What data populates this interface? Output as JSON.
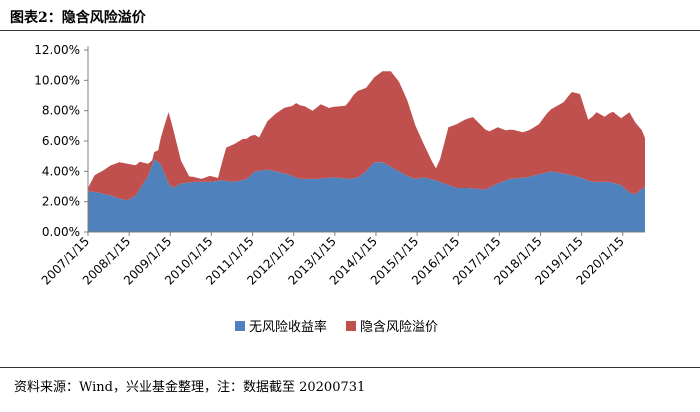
{
  "header": {
    "title": "图表2：隐含风险溢价"
  },
  "footer": {
    "source": "资料来源：Wind，兴业基金整理，注：数据截至 20200731"
  },
  "colors": {
    "risk_free": "#4F81BD",
    "risk_premium": "#C0504D",
    "axis": "#808080"
  },
  "chart_data": {
    "type": "area",
    "stacked": true,
    "title": "",
    "xlabel": "",
    "ylabel": "",
    "ylim": [
      0,
      12
    ],
    "yticks": [
      0,
      2,
      4,
      6,
      8,
      10,
      12
    ],
    "ytick_labels": [
      "0.00%",
      "2.00%",
      "4.00%",
      "6.00%",
      "8.00%",
      "10.00%",
      "12.00%"
    ],
    "xlim": [
      2007.04,
      2020.58
    ],
    "xticks": [
      2007.04,
      2008.04,
      2009.04,
      2010.04,
      2011.04,
      2012.04,
      2013.04,
      2014.04,
      2015.04,
      2016.04,
      2017.04,
      2018.04,
      2019.04,
      2020.04
    ],
    "xtick_labels": [
      "2007/1/15",
      "2008/1/15",
      "2009/1/15",
      "2010/1/15",
      "2011/1/15",
      "2012/1/15",
      "2013/1/15",
      "2014/1/15",
      "2015/1/15",
      "2016/1/15",
      "2017/1/15",
      "2018/1/15",
      "2019/1/15",
      "2020/1/15"
    ],
    "legend_position": "bottom",
    "series": [
      {
        "name": "无风险收益率",
        "x": [
          2007.04,
          2007.3,
          2007.6,
          2007.8,
          2008.0,
          2008.2,
          2008.5,
          2008.65,
          2008.8,
          2009.0,
          2009.1,
          2009.3,
          2009.6,
          2010.0,
          2010.3,
          2010.6,
          2010.9,
          2011.1,
          2011.4,
          2011.6,
          2011.9,
          2012.2,
          2012.6,
          2013.0,
          2013.4,
          2013.6,
          2013.8,
          2014.0,
          2014.2,
          2014.4,
          2014.6,
          2014.8,
          2015.0,
          2015.2,
          2015.5,
          2015.8,
          2016.0,
          2016.3,
          2016.7,
          2017.0,
          2017.3,
          2017.7,
          2018.0,
          2018.3,
          2018.7,
          2019.0,
          2019.3,
          2019.7,
          2020.0,
          2020.2,
          2020.35,
          2020.58
        ],
        "values": [
          2.7,
          2.6,
          2.4,
          2.2,
          2.1,
          2.4,
          3.7,
          4.8,
          4.5,
          3.2,
          2.9,
          3.2,
          3.3,
          3.3,
          3.4,
          3.3,
          3.5,
          4.0,
          4.1,
          4.0,
          3.8,
          3.5,
          3.5,
          3.6,
          3.5,
          3.6,
          4.0,
          4.6,
          4.6,
          4.3,
          4.0,
          3.7,
          3.5,
          3.6,
          3.4,
          3.1,
          2.9,
          2.9,
          2.8,
          3.2,
          3.5,
          3.6,
          3.8,
          4.0,
          3.8,
          3.6,
          3.3,
          3.3,
          3.1,
          2.6,
          2.5,
          3.0
        ]
      },
      {
        "name": "隐含风险溢价",
        "x": [
          2007.04,
          2007.2,
          2007.4,
          2007.6,
          2007.8,
          2008.0,
          2008.3,
          2008.5,
          2008.6,
          2008.75,
          2008.9,
          2009.0,
          2009.1,
          2009.3,
          2009.5,
          2009.8,
          2010.0,
          2010.2,
          2010.4,
          2010.6,
          2010.8,
          2011.0,
          2011.2,
          2011.4,
          2011.6,
          2011.8,
          2012.0,
          2012.1,
          2012.3,
          2012.5,
          2012.7,
          2012.9,
          2013.1,
          2013.3,
          2013.5,
          2013.6,
          2013.8,
          2014.0,
          2014.2,
          2014.4,
          2014.6,
          2014.8,
          2015.0,
          2015.2,
          2015.4,
          2015.5,
          2015.6,
          2015.8,
          2016.0,
          2016.2,
          2016.4,
          2016.6,
          2016.8,
          2017.0,
          2017.2,
          2017.4,
          2017.6,
          2017.8,
          2018.0,
          2018.2,
          2018.4,
          2018.6,
          2018.8,
          2019.0,
          2019.2,
          2019.4,
          2019.6,
          2019.8,
          2020.0,
          2020.2,
          2020.35,
          2020.5,
          2020.58
        ],
        "values": [
          0.2,
          1.1,
          1.5,
          2.0,
          2.4,
          2.4,
          1.8,
          0.8,
          0.3,
          0.8,
          3.2,
          4.7,
          4.0,
          1.5,
          0.4,
          0.2,
          0.4,
          0.2,
          2.2,
          2.5,
          2.7,
          2.6,
          2.2,
          3.2,
          3.8,
          4.3,
          4.6,
          4.9,
          4.8,
          4.5,
          4.9,
          4.6,
          4.7,
          4.8,
          5.5,
          5.7,
          5.5,
          5.6,
          6.0,
          6.3,
          5.9,
          5.0,
          3.5,
          2.2,
          1.2,
          0.8,
          1.5,
          3.8,
          4.2,
          4.5,
          4.7,
          4.2,
          3.7,
          3.7,
          3.3,
          3.2,
          3.0,
          3.1,
          3.3,
          3.9,
          4.3,
          4.7,
          5.5,
          5.5,
          4.0,
          4.6,
          4.3,
          4.7,
          4.4,
          5.3,
          4.7,
          3.9,
          3.2
        ]
      }
    ]
  }
}
